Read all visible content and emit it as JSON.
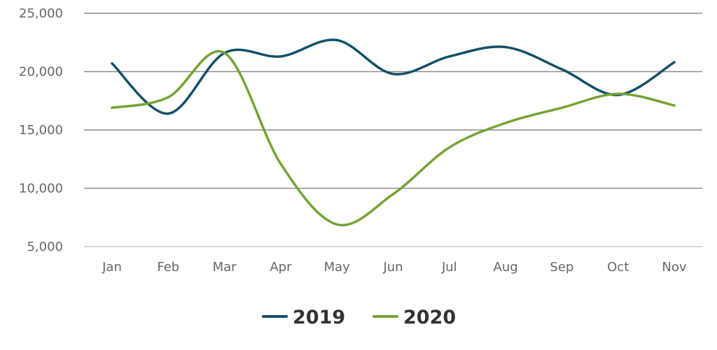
{
  "chart_data": {
    "type": "line",
    "categories": [
      "Jan",
      "Feb",
      "Mar",
      "Apr",
      "May",
      "Jun",
      "Jul",
      "Aug",
      "Sep",
      "Oct",
      "Nov"
    ],
    "series": [
      {
        "name": "2019",
        "color": "#134f6b",
        "values": [
          20700,
          16400,
          21600,
          21300,
          22700,
          19800,
          21300,
          22100,
          20200,
          18000,
          20800
        ]
      },
      {
        "name": "2020",
        "color": "#76a236",
        "values": [
          16900,
          17800,
          21600,
          12100,
          6900,
          9500,
          13500,
          15600,
          16900,
          18100,
          17100
        ]
      }
    ],
    "y_ticks": [
      5000,
      10000,
      15000,
      20000,
      25000
    ],
    "y_tick_labels": [
      "5,000",
      "10,000",
      "15,000",
      "20,000",
      "25,000"
    ],
    "ylim": [
      5000,
      25000
    ],
    "grid": true,
    "legend": "bottom-center",
    "title": "",
    "xlabel": "",
    "ylabel": ""
  }
}
